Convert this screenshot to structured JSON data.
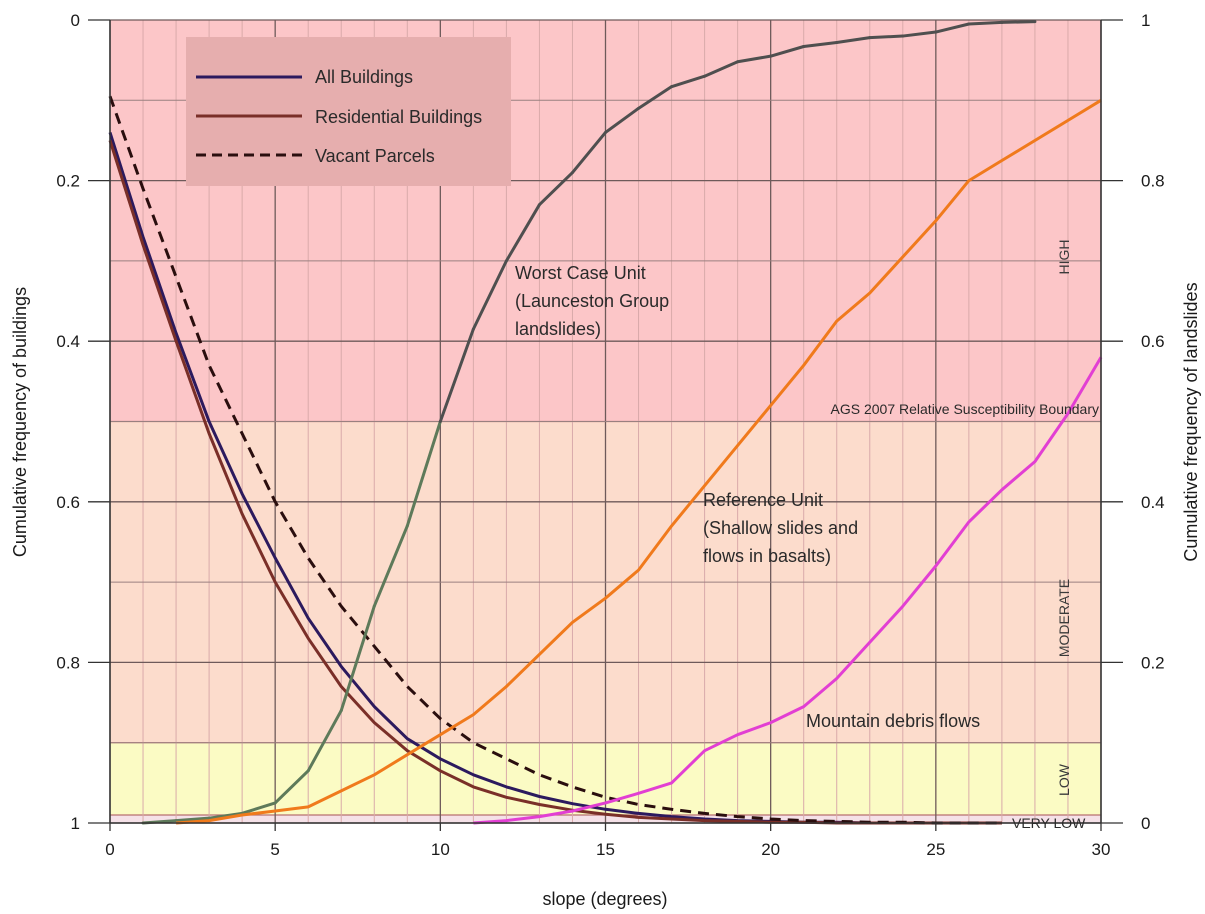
{
  "chart_data": {
    "type": "line",
    "xlabel": "slope (degrees)",
    "ylabel_left": "Cumulative frequency of buildings",
    "ylabel_right": "Cumulative frequency of landslides",
    "xlim": [
      0,
      30
    ],
    "ylim_left": [
      0,
      1
    ],
    "ylim_left_inverted": true,
    "ylim_right": [
      0,
      1
    ],
    "x_ticks": [
      "0",
      "5",
      "10",
      "15",
      "20",
      "25",
      "30"
    ],
    "y_left_ticks": [
      "0",
      "0.2",
      "0.4",
      "0.6",
      "0.8",
      "1"
    ],
    "y_right_ticks": [
      "1",
      "0.8",
      "0.6",
      "0.4",
      "0.2",
      "0"
    ],
    "grid": true,
    "legend_position": "top-left",
    "zones": [
      {
        "label": "HIGH",
        "from": 0.5,
        "to": 1.0,
        "color": "#fcc6c8"
      },
      {
        "label": "MODERATE",
        "from": 0.1,
        "to": 0.5,
        "color": "#fcdccc"
      },
      {
        "label": "LOW",
        "from": 0.01,
        "to": 0.1,
        "color": "#fbfbc4"
      },
      {
        "label": "VERY LOW",
        "from": 0.0,
        "to": 0.01,
        "color": "#f5e1e8"
      }
    ],
    "boundary_label": "AGS 2007 Relative Susceptibility Boundary",
    "series": [
      {
        "name": "All Buildings",
        "axis": "left",
        "style": "solid",
        "color": "#2c1a5e",
        "x": [
          0,
          1,
          2,
          3,
          4,
          5,
          6,
          7,
          8,
          9,
          10,
          11,
          12,
          13,
          14,
          15,
          16,
          17,
          18,
          19,
          20,
          21,
          22,
          23,
          24,
          25,
          26,
          27
        ],
        "y": [
          0.14,
          0.27,
          0.39,
          0.5,
          0.59,
          0.67,
          0.745,
          0.805,
          0.855,
          0.895,
          0.92,
          0.94,
          0.955,
          0.967,
          0.976,
          0.983,
          0.988,
          0.992,
          0.995,
          0.997,
          0.998,
          0.999,
          0.999,
          1.0,
          1.0,
          1.0,
          1.0,
          1.0
        ]
      },
      {
        "name": "Residential Buildings",
        "axis": "left",
        "style": "solid",
        "color": "#7a2f28",
        "x": [
          0,
          1,
          2,
          3,
          4,
          5,
          6,
          7,
          8,
          9,
          10,
          11,
          12,
          13,
          14,
          15,
          16,
          17,
          18,
          19,
          20,
          21,
          22,
          23,
          24,
          25,
          26,
          27
        ],
        "y": [
          0.15,
          0.28,
          0.4,
          0.515,
          0.615,
          0.7,
          0.77,
          0.83,
          0.875,
          0.91,
          0.935,
          0.955,
          0.968,
          0.977,
          0.984,
          0.989,
          0.993,
          0.995,
          0.997,
          0.998,
          0.999,
          0.999,
          1.0,
          1.0,
          1.0,
          1.0,
          1.0,
          1.0
        ]
      },
      {
        "name": "Vacant Parcels",
        "axis": "left",
        "style": "dashed",
        "color": "#2a0e0e",
        "x": [
          0,
          1,
          2,
          3,
          4,
          5,
          6,
          7,
          8,
          9,
          10,
          11,
          12,
          13,
          14,
          15,
          16,
          17,
          18,
          19,
          20,
          21,
          22,
          23,
          24,
          25,
          26,
          27
        ],
        "y": [
          0.095,
          0.21,
          0.32,
          0.43,
          0.515,
          0.6,
          0.67,
          0.73,
          0.78,
          0.83,
          0.87,
          0.9,
          0.92,
          0.94,
          0.955,
          0.968,
          0.977,
          0.983,
          0.988,
          0.992,
          0.995,
          0.997,
          0.998,
          0.999,
          0.999,
          1.0,
          1.0,
          1.0
        ]
      },
      {
        "name": "Worst Case Unit (Launceston Group landslides)",
        "axis": "right",
        "style": "solid",
        "color": "#4f4f4f",
        "x": [
          1,
          2,
          3,
          4,
          5,
          6,
          7,
          8,
          9,
          10,
          11,
          12,
          13,
          14,
          15,
          16,
          17,
          18,
          19,
          20,
          21,
          22,
          23,
          24,
          25,
          26,
          27,
          28
        ],
        "y": [
          0.0,
          0.003,
          0.006,
          0.012,
          0.025,
          0.065,
          0.14,
          0.27,
          0.37,
          0.5,
          0.615,
          0.7,
          0.77,
          0.81,
          0.86,
          0.89,
          0.917,
          0.93,
          0.948,
          0.955,
          0.967,
          0.972,
          0.978,
          0.98,
          0.985,
          0.995,
          0.997,
          0.998
        ]
      },
      {
        "name": "Reference Unit (Shallow slides and flows in basalts)",
        "axis": "right",
        "style": "solid",
        "color": "#f07a1c",
        "x": [
          2,
          3,
          4,
          5,
          6,
          7,
          8,
          9,
          10,
          11,
          12,
          13,
          14,
          15,
          16,
          17,
          18,
          19,
          20,
          21,
          22,
          23,
          24,
          25,
          26,
          27,
          28,
          29,
          30
        ],
        "y": [
          0.0,
          0.003,
          0.01,
          0.015,
          0.02,
          0.04,
          0.06,
          0.085,
          0.11,
          0.135,
          0.17,
          0.21,
          0.25,
          0.28,
          0.315,
          0.37,
          0.42,
          0.47,
          0.52,
          0.57,
          0.625,
          0.66,
          0.705,
          0.75,
          0.8,
          0.825,
          0.85,
          0.875,
          0.9
        ]
      },
      {
        "name": "Mountain debris flows",
        "axis": "right",
        "style": "solid",
        "color": "#e23fd3",
        "x": [
          11,
          12,
          13,
          14,
          15,
          16,
          17,
          18,
          19,
          20,
          21,
          22,
          23,
          24,
          25,
          26,
          27,
          28,
          29,
          30
        ],
        "y": [
          0.0,
          0.003,
          0.008,
          0.015,
          0.025,
          0.037,
          0.05,
          0.09,
          0.11,
          0.125,
          0.145,
          0.18,
          0.225,
          0.27,
          0.32,
          0.375,
          0.415,
          0.45,
          0.51,
          0.58
        ]
      }
    ],
    "annotations": {
      "worst_case": [
        "Worst Case Unit",
        "(Launceston Group",
        "landslides)"
      ],
      "reference": [
        "Reference Unit",
        "(Shallow slides and",
        "flows in basalts)"
      ],
      "debris": "Mountain debris flows"
    },
    "legend": [
      {
        "label": "All Buildings",
        "color": "#2c1a5e",
        "style": "solid"
      },
      {
        "label": "Residential Buildings",
        "color": "#7a2f28",
        "style": "solid"
      },
      {
        "label": "Vacant Parcels",
        "color": "#2a0e0e",
        "style": "dashed"
      }
    ]
  }
}
